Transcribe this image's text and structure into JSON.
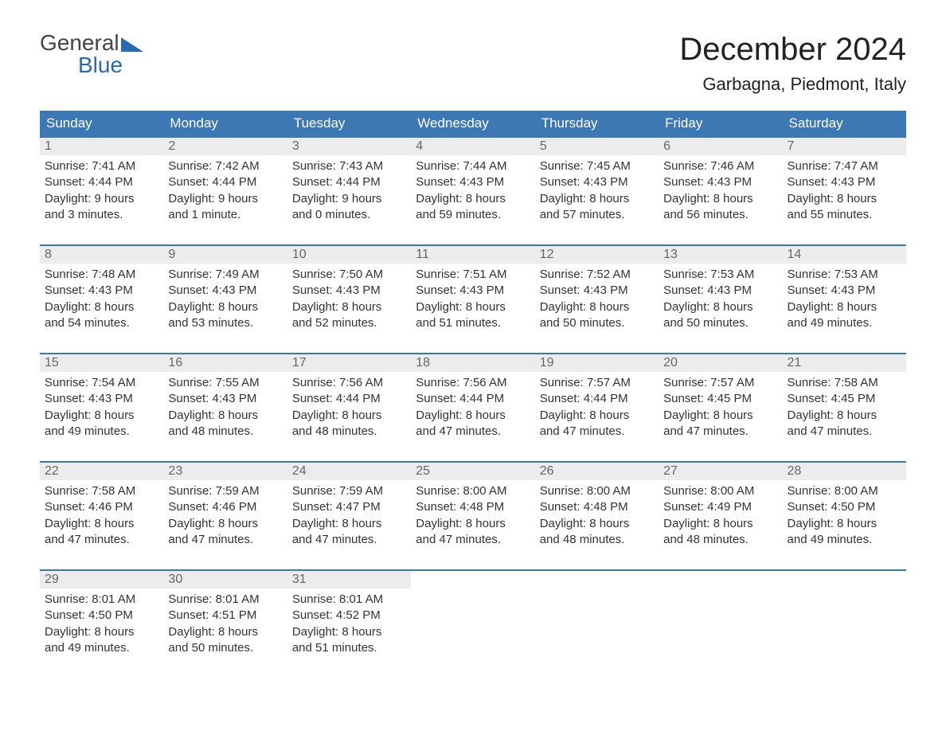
{
  "logo": {
    "top": "General",
    "bottom": "Blue"
  },
  "title": "December 2024",
  "location": "Garbagna, Piedmont, Italy",
  "colors": {
    "header_bg": "#3c78b4",
    "header_text": "#ffffff",
    "daynum_bg": "#ececec",
    "daynum_text": "#666666",
    "body_text": "#333333",
    "accent": "#2a6ab0",
    "background": "#ffffff",
    "week_border": "#3c78b4"
  },
  "fonts": {
    "title_size_pt": 30,
    "location_size_pt": 16,
    "header_size_pt": 13,
    "daynum_size_pt": 12,
    "info_size_pt": 11
  },
  "day_labels": [
    "Sunday",
    "Monday",
    "Tuesday",
    "Wednesday",
    "Thursday",
    "Friday",
    "Saturday"
  ],
  "weeks": [
    [
      {
        "n": "1",
        "sr": "Sunrise: 7:41 AM",
        "ss": "Sunset: 4:44 PM",
        "d1": "Daylight: 9 hours",
        "d2": "and 3 minutes."
      },
      {
        "n": "2",
        "sr": "Sunrise: 7:42 AM",
        "ss": "Sunset: 4:44 PM",
        "d1": "Daylight: 9 hours",
        "d2": "and 1 minute."
      },
      {
        "n": "3",
        "sr": "Sunrise: 7:43 AM",
        "ss": "Sunset: 4:44 PM",
        "d1": "Daylight: 9 hours",
        "d2": "and 0 minutes."
      },
      {
        "n": "4",
        "sr": "Sunrise: 7:44 AM",
        "ss": "Sunset: 4:43 PM",
        "d1": "Daylight: 8 hours",
        "d2": "and 59 minutes."
      },
      {
        "n": "5",
        "sr": "Sunrise: 7:45 AM",
        "ss": "Sunset: 4:43 PM",
        "d1": "Daylight: 8 hours",
        "d2": "and 57 minutes."
      },
      {
        "n": "6",
        "sr": "Sunrise: 7:46 AM",
        "ss": "Sunset: 4:43 PM",
        "d1": "Daylight: 8 hours",
        "d2": "and 56 minutes."
      },
      {
        "n": "7",
        "sr": "Sunrise: 7:47 AM",
        "ss": "Sunset: 4:43 PM",
        "d1": "Daylight: 8 hours",
        "d2": "and 55 minutes."
      }
    ],
    [
      {
        "n": "8",
        "sr": "Sunrise: 7:48 AM",
        "ss": "Sunset: 4:43 PM",
        "d1": "Daylight: 8 hours",
        "d2": "and 54 minutes."
      },
      {
        "n": "9",
        "sr": "Sunrise: 7:49 AM",
        "ss": "Sunset: 4:43 PM",
        "d1": "Daylight: 8 hours",
        "d2": "and 53 minutes."
      },
      {
        "n": "10",
        "sr": "Sunrise: 7:50 AM",
        "ss": "Sunset: 4:43 PM",
        "d1": "Daylight: 8 hours",
        "d2": "and 52 minutes."
      },
      {
        "n": "11",
        "sr": "Sunrise: 7:51 AM",
        "ss": "Sunset: 4:43 PM",
        "d1": "Daylight: 8 hours",
        "d2": "and 51 minutes."
      },
      {
        "n": "12",
        "sr": "Sunrise: 7:52 AM",
        "ss": "Sunset: 4:43 PM",
        "d1": "Daylight: 8 hours",
        "d2": "and 50 minutes."
      },
      {
        "n": "13",
        "sr": "Sunrise: 7:53 AM",
        "ss": "Sunset: 4:43 PM",
        "d1": "Daylight: 8 hours",
        "d2": "and 50 minutes."
      },
      {
        "n": "14",
        "sr": "Sunrise: 7:53 AM",
        "ss": "Sunset: 4:43 PM",
        "d1": "Daylight: 8 hours",
        "d2": "and 49 minutes."
      }
    ],
    [
      {
        "n": "15",
        "sr": "Sunrise: 7:54 AM",
        "ss": "Sunset: 4:43 PM",
        "d1": "Daylight: 8 hours",
        "d2": "and 49 minutes."
      },
      {
        "n": "16",
        "sr": "Sunrise: 7:55 AM",
        "ss": "Sunset: 4:43 PM",
        "d1": "Daylight: 8 hours",
        "d2": "and 48 minutes."
      },
      {
        "n": "17",
        "sr": "Sunrise: 7:56 AM",
        "ss": "Sunset: 4:44 PM",
        "d1": "Daylight: 8 hours",
        "d2": "and 48 minutes."
      },
      {
        "n": "18",
        "sr": "Sunrise: 7:56 AM",
        "ss": "Sunset: 4:44 PM",
        "d1": "Daylight: 8 hours",
        "d2": "and 47 minutes."
      },
      {
        "n": "19",
        "sr": "Sunrise: 7:57 AM",
        "ss": "Sunset: 4:44 PM",
        "d1": "Daylight: 8 hours",
        "d2": "and 47 minutes."
      },
      {
        "n": "20",
        "sr": "Sunrise: 7:57 AM",
        "ss": "Sunset: 4:45 PM",
        "d1": "Daylight: 8 hours",
        "d2": "and 47 minutes."
      },
      {
        "n": "21",
        "sr": "Sunrise: 7:58 AM",
        "ss": "Sunset: 4:45 PM",
        "d1": "Daylight: 8 hours",
        "d2": "and 47 minutes."
      }
    ],
    [
      {
        "n": "22",
        "sr": "Sunrise: 7:58 AM",
        "ss": "Sunset: 4:46 PM",
        "d1": "Daylight: 8 hours",
        "d2": "and 47 minutes."
      },
      {
        "n": "23",
        "sr": "Sunrise: 7:59 AM",
        "ss": "Sunset: 4:46 PM",
        "d1": "Daylight: 8 hours",
        "d2": "and 47 minutes."
      },
      {
        "n": "24",
        "sr": "Sunrise: 7:59 AM",
        "ss": "Sunset: 4:47 PM",
        "d1": "Daylight: 8 hours",
        "d2": "and 47 minutes."
      },
      {
        "n": "25",
        "sr": "Sunrise: 8:00 AM",
        "ss": "Sunset: 4:48 PM",
        "d1": "Daylight: 8 hours",
        "d2": "and 47 minutes."
      },
      {
        "n": "26",
        "sr": "Sunrise: 8:00 AM",
        "ss": "Sunset: 4:48 PM",
        "d1": "Daylight: 8 hours",
        "d2": "and 48 minutes."
      },
      {
        "n": "27",
        "sr": "Sunrise: 8:00 AM",
        "ss": "Sunset: 4:49 PM",
        "d1": "Daylight: 8 hours",
        "d2": "and 48 minutes."
      },
      {
        "n": "28",
        "sr": "Sunrise: 8:00 AM",
        "ss": "Sunset: 4:50 PM",
        "d1": "Daylight: 8 hours",
        "d2": "and 49 minutes."
      }
    ],
    [
      {
        "n": "29",
        "sr": "Sunrise: 8:01 AM",
        "ss": "Sunset: 4:50 PM",
        "d1": "Daylight: 8 hours",
        "d2": "and 49 minutes."
      },
      {
        "n": "30",
        "sr": "Sunrise: 8:01 AM",
        "ss": "Sunset: 4:51 PM",
        "d1": "Daylight: 8 hours",
        "d2": "and 50 minutes."
      },
      {
        "n": "31",
        "sr": "Sunrise: 8:01 AM",
        "ss": "Sunset: 4:52 PM",
        "d1": "Daylight: 8 hours",
        "d2": "and 51 minutes."
      },
      null,
      null,
      null,
      null
    ]
  ]
}
